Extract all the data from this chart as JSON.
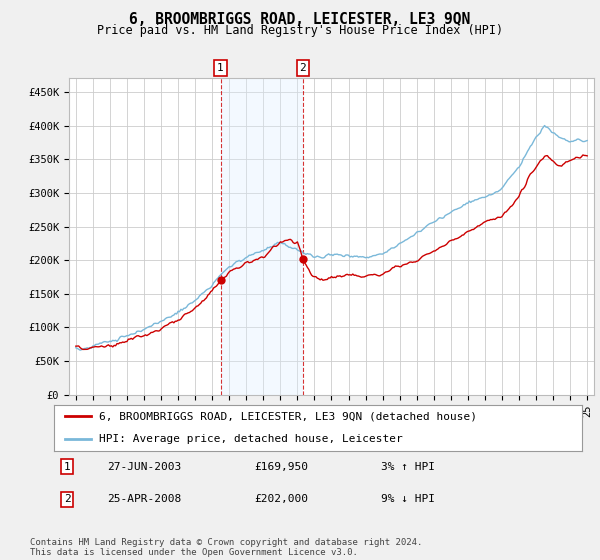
{
  "title": "6, BROOMBRIGGS ROAD, LEICESTER, LE3 9QN",
  "subtitle": "Price paid vs. HM Land Registry's House Price Index (HPI)",
  "ylim": [
    0,
    470000
  ],
  "yticks": [
    0,
    50000,
    100000,
    150000,
    200000,
    250000,
    300000,
    350000,
    400000,
    450000
  ],
  "ytick_labels": [
    "£0",
    "£50K",
    "£100K",
    "£150K",
    "£200K",
    "£250K",
    "£300K",
    "£350K",
    "£400K",
    "£450K"
  ],
  "sale1_year": 2003.49,
  "sale1_price": 169950,
  "sale1_date": "27-JUN-2003",
  "sale1_hpi_diff": "3% ↑ HPI",
  "sale2_year": 2008.32,
  "sale2_price": 202000,
  "sale2_date": "25-APR-2008",
  "sale2_hpi_diff": "9% ↓ HPI",
  "hpi_color": "#7ab8d9",
  "price_color": "#cc0000",
  "span_color": "#ddeeff",
  "legend_line1": "6, BROOMBRIGGS ROAD, LEICESTER, LE3 9QN (detached house)",
  "legend_line2": "HPI: Average price, detached house, Leicester",
  "footnote": "Contains HM Land Registry data © Crown copyright and database right 2024.\nThis data is licensed under the Open Government Licence v3.0.",
  "bg_color": "#f0f0f0",
  "plot_bg_color": "#ffffff",
  "grid_color": "#cccccc",
  "title_fontsize": 10.5,
  "subtitle_fontsize": 8.5,
  "tick_fontsize": 7.5,
  "legend_fontsize": 8,
  "footnote_fontsize": 6.5,
  "xlim_left": 1994.6,
  "xlim_right": 2025.4
}
